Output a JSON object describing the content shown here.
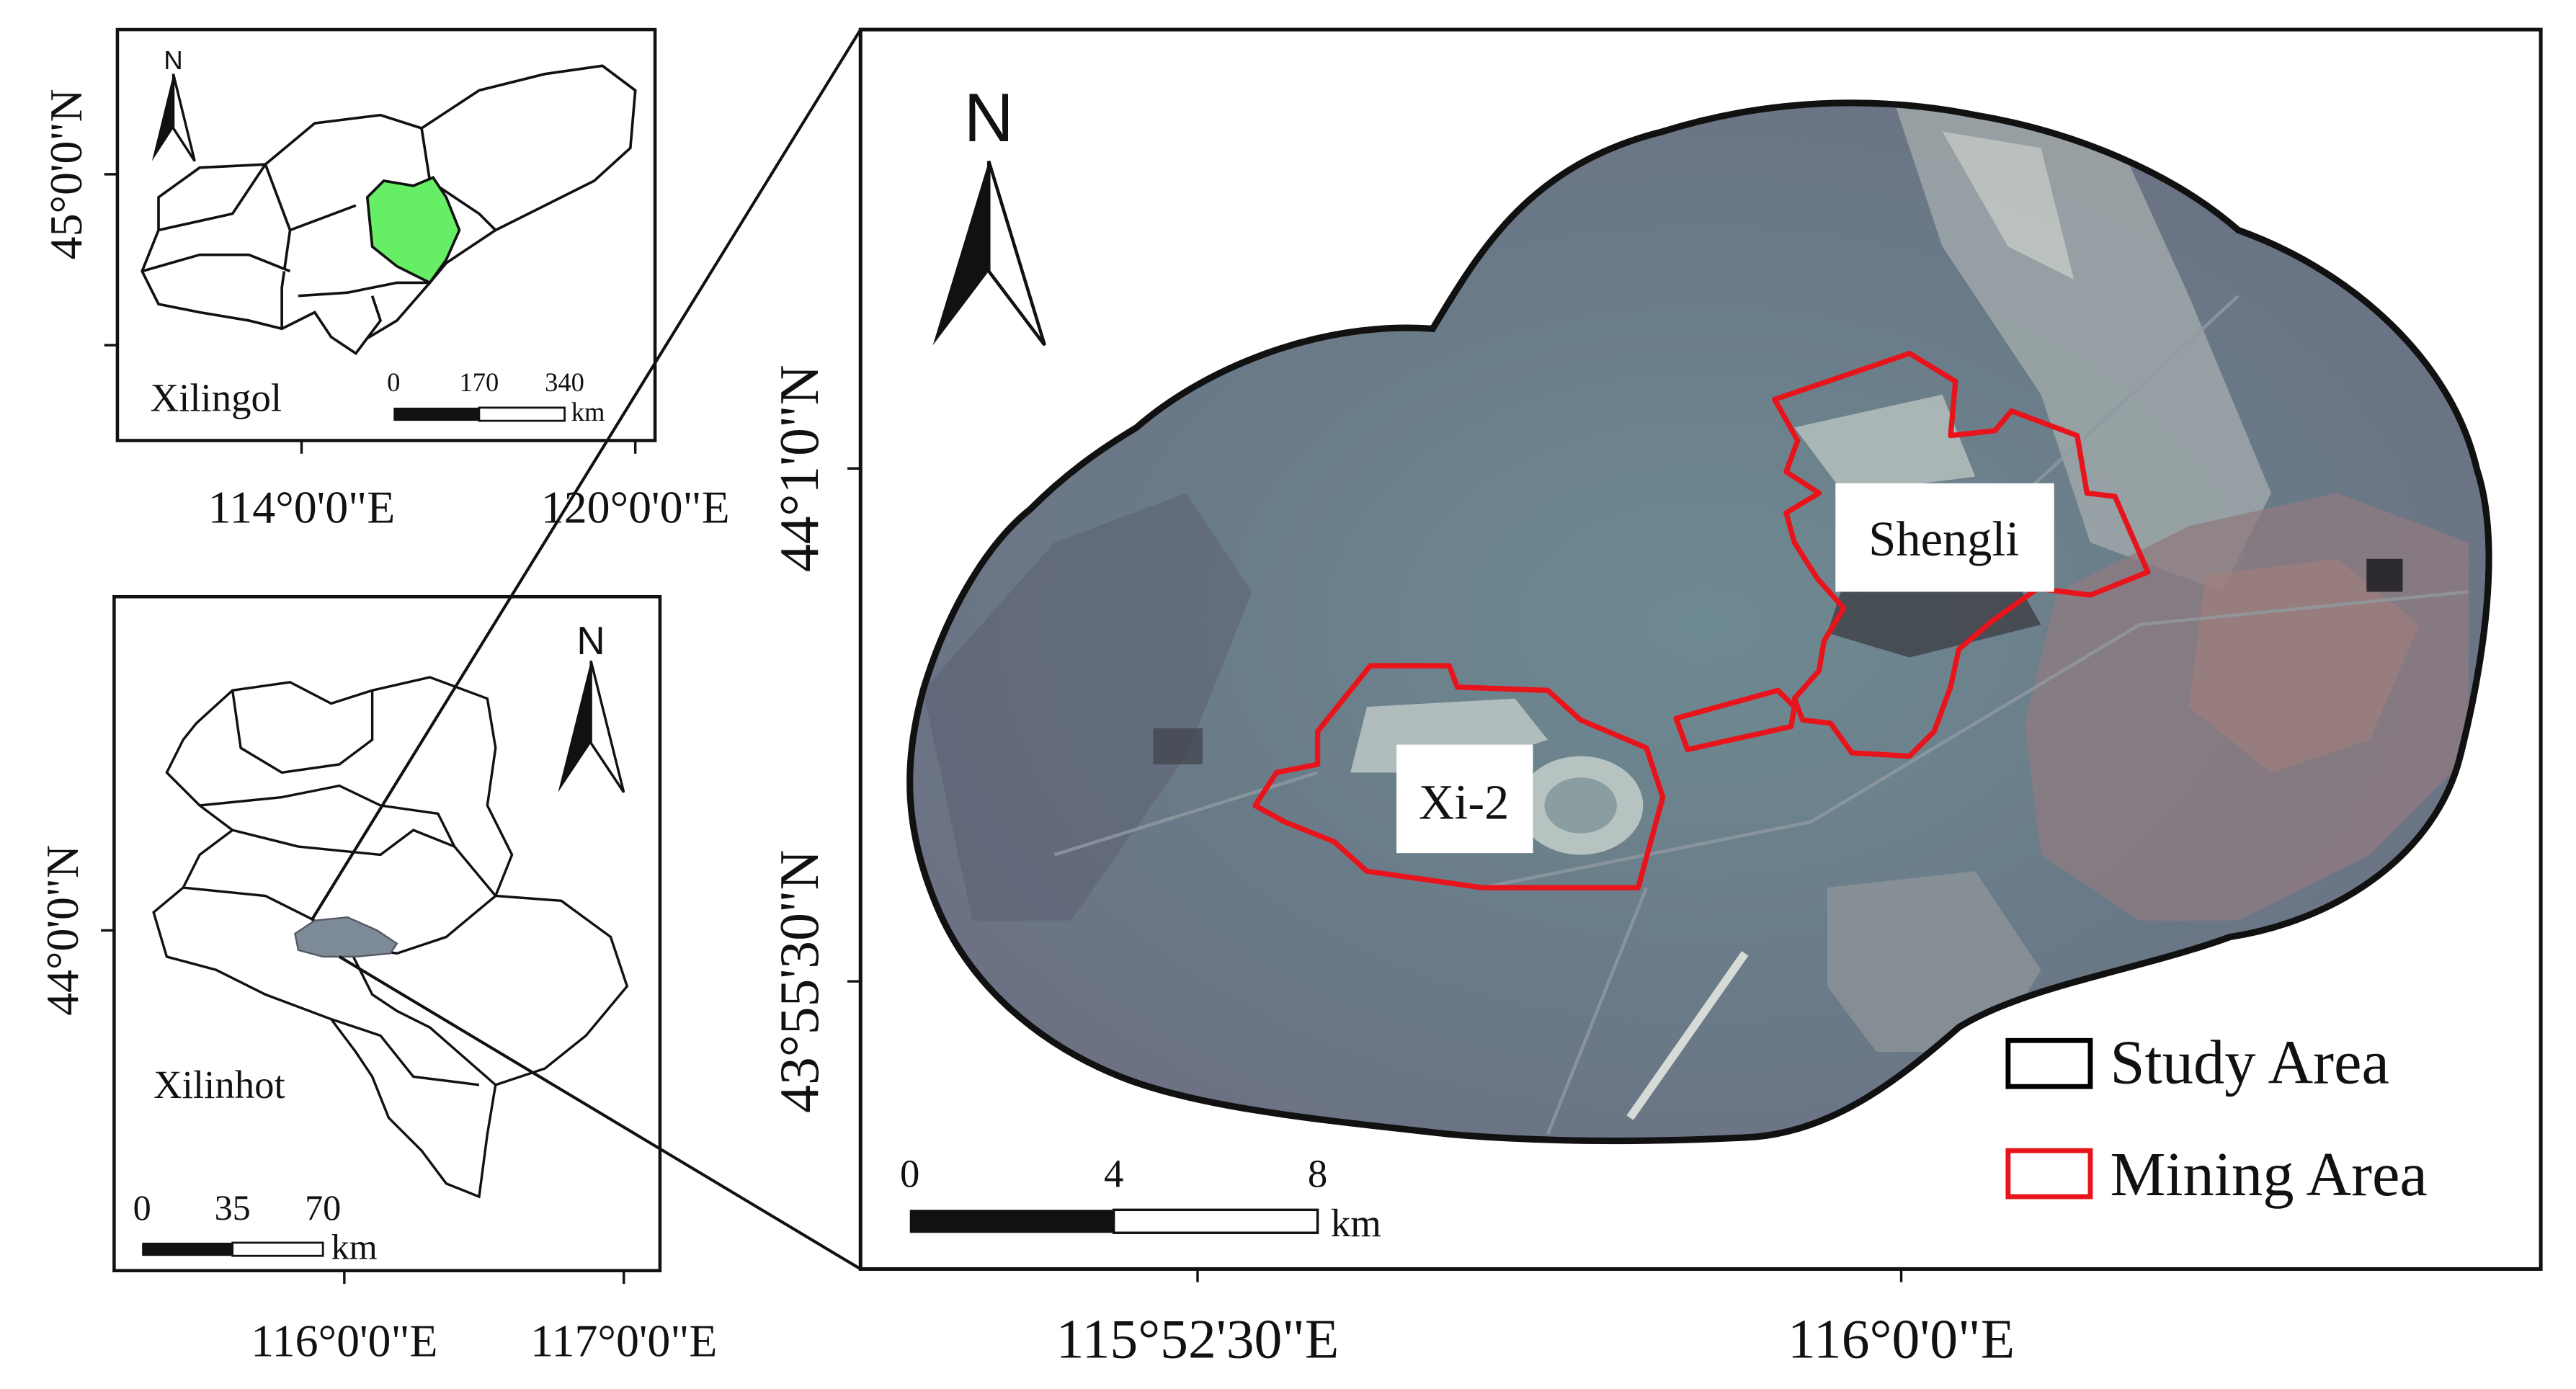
{
  "inset_top": {
    "label": "Xilingol",
    "lat_label": "45°0'0\"N",
    "lon_labels": [
      "114°0'0\"E",
      "120°0'0\"E"
    ],
    "scale": {
      "ticks": [
        "0",
        "170",
        "340"
      ],
      "unit": "km"
    },
    "north": "N",
    "highlight_color": "#66ee66"
  },
  "inset_bottom": {
    "label": "Xilinhot",
    "lat_label": "44°0'0\"N",
    "lon_labels": [
      "116°0'0\"E",
      "117°0'0\"E"
    ],
    "scale": {
      "ticks": [
        "0",
        "35",
        "70"
      ],
      "unit": "km"
    },
    "north": "N"
  },
  "main_map": {
    "lat_labels": [
      "44°1'0\"N",
      "43°55'30\"N"
    ],
    "lon_labels": [
      "115°52'30\"E",
      "116°0'0\"E"
    ],
    "north": "N",
    "mines": [
      "Shengli",
      "Xi-2"
    ],
    "scale": {
      "ticks": [
        "0",
        "4",
        "8"
      ],
      "unit": "km"
    },
    "legend": [
      {
        "label": "Study Area",
        "color": "#000000"
      },
      {
        "label": "Mining Area",
        "color": "#e8141c"
      }
    ]
  }
}
